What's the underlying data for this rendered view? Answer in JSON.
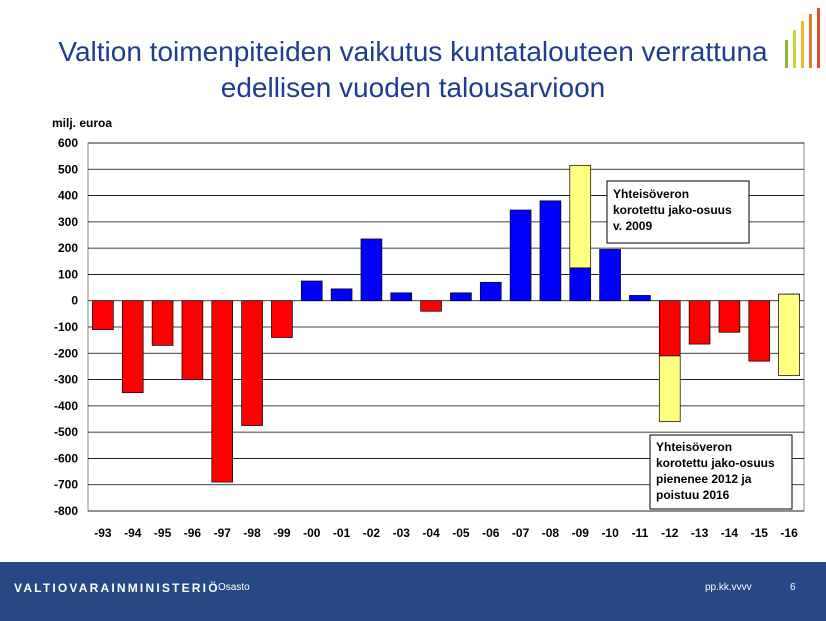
{
  "header": {
    "title_line1": "Valtion toimenpiteiden vaikutus kuntatalouteen verrattuna",
    "title_line2": "edellisen vuoden talousarvioon"
  },
  "chart_data": {
    "type": "bar",
    "stacked": true,
    "ylabel": "milj. euroa",
    "ylim": [
      -800,
      600
    ],
    "yticks": [
      600,
      500,
      400,
      300,
      200,
      100,
      0,
      -100,
      -200,
      -300,
      -400,
      -500,
      -600,
      -700,
      -800
    ],
    "grid": true,
    "categories": [
      "-93",
      "-94",
      "-95",
      "-96",
      "-97",
      "-98",
      "-99",
      "-00",
      "-01",
      "-02",
      "-03",
      "-04",
      "-05",
      "-06",
      "-07",
      "-08",
      "-09",
      "-10",
      "-11",
      "-12",
      "-13",
      "-14",
      "-15",
      "-16"
    ],
    "series": [
      {
        "values": [
          -110,
          -350,
          -170,
          -300,
          -690,
          -475,
          -140,
          75,
          45,
          235,
          30,
          -40,
          30,
          70,
          345,
          380,
          125,
          195,
          20,
          -210,
          -165,
          -120,
          -230,
          25
        ]
      },
      {
        "values": [
          0,
          0,
          0,
          0,
          0,
          0,
          0,
          0,
          0,
          0,
          0,
          0,
          0,
          0,
          0,
          0,
          390,
          0,
          0,
          -250,
          0,
          0,
          0,
          -310
        ]
      }
    ],
    "annotations": [
      {
        "lines": [
          "Yhteisöveron",
          "korotettu jako-osuus",
          "v. 2009"
        ]
      },
      {
        "lines": [
          "Yhteisöveron",
          "korotettu jako-osuus",
          "pienenee 2012 ja",
          "poistuu 2016"
        ]
      }
    ],
    "colors": {
      "positive": "#0000ff",
      "negative": "#ff0000",
      "tax_share": "#ffff80",
      "plot_bg": "#ffffff",
      "grid": "#000000"
    }
  },
  "footer": {
    "org": "VALTIOVARAINMINISTERIÖ",
    "department": "Osasto",
    "date": "pp.kk.vvvv",
    "page": "6"
  }
}
